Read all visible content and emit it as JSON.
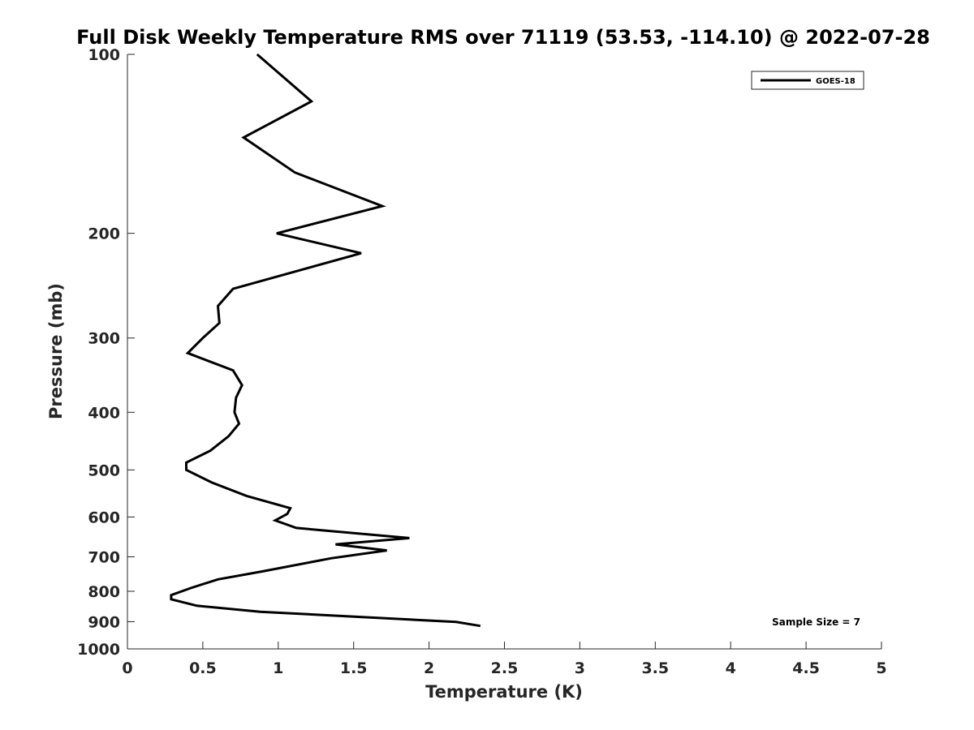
{
  "chart_data": {
    "type": "line",
    "title": "Full Disk Weekly Temperature RMS over 71119 (53.53, -114.10) @ 2022-07-28",
    "xlabel": "Temperature (K)",
    "ylabel": "Pressure (mb)",
    "xlim": [
      0,
      5
    ],
    "ylim": [
      100,
      1000
    ],
    "y_scale": "log",
    "y_reversed": true,
    "xticks": [
      0,
      0.5,
      1,
      1.5,
      2,
      2.5,
      3,
      3.5,
      4,
      4.5,
      5
    ],
    "xtick_labels": [
      "0",
      "0.5",
      "1",
      "1.5",
      "2",
      "2.5",
      "3",
      "3.5",
      "4",
      "4.5",
      "5"
    ],
    "yticks": [
      100,
      200,
      300,
      400,
      500,
      600,
      700,
      800,
      900,
      1000
    ],
    "ytick_labels": [
      "100",
      "200",
      "300",
      "400",
      "500",
      "600",
      "700",
      "800",
      "900",
      "1000"
    ],
    "grid": false,
    "legend_position": "top-right",
    "annotation": "Sample Size = 7",
    "series": [
      {
        "name": "GOES-18",
        "color": "#000000",
        "points": [
          [
            0.86,
            100
          ],
          [
            1.22,
            120
          ],
          [
            0.77,
            138
          ],
          [
            1.11,
            158
          ],
          [
            1.69,
            180
          ],
          [
            0.99,
            200
          ],
          [
            1.55,
            216
          ],
          [
            0.7,
            248
          ],
          [
            0.6,
            265
          ],
          [
            0.61,
            283
          ],
          [
            0.5,
            300
          ],
          [
            0.4,
            318
          ],
          [
            0.7,
            340
          ],
          [
            0.76,
            360
          ],
          [
            0.72,
            378
          ],
          [
            0.71,
            400
          ],
          [
            0.74,
            418
          ],
          [
            0.67,
            439
          ],
          [
            0.55,
            464
          ],
          [
            0.39,
            486
          ],
          [
            0.39,
            500
          ],
          [
            0.56,
            525
          ],
          [
            0.79,
            553
          ],
          [
            1.08,
            580
          ],
          [
            1.06,
            593
          ],
          [
            0.98,
            608
          ],
          [
            1.12,
            626
          ],
          [
            1.87,
            651
          ],
          [
            1.38,
            667
          ],
          [
            1.72,
            683
          ],
          [
            1.35,
            704
          ],
          [
            0.89,
            741
          ],
          [
            0.6,
            764
          ],
          [
            0.42,
            790
          ],
          [
            0.29,
            812
          ],
          [
            0.29,
            825
          ],
          [
            0.46,
            846
          ],
          [
            0.88,
            866
          ],
          [
            2.18,
            901
          ],
          [
            2.34,
            915
          ]
        ]
      }
    ]
  }
}
